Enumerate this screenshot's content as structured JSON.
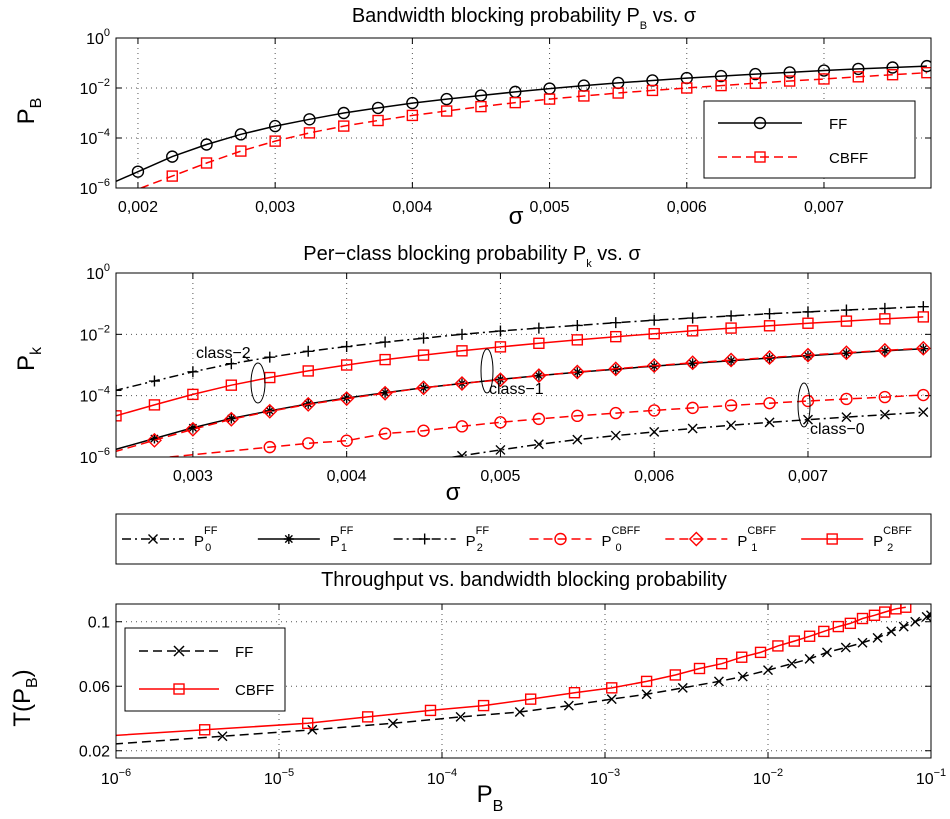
{
  "colors": {
    "black": "#000000",
    "red": "#ff0000"
  },
  "chart_data": [
    {
      "type": "line",
      "title": "Bandwidth blocking probability P_B vs. σ",
      "xlabel": "σ",
      "ylabel": "P_B",
      "xscale": "linear",
      "yscale": "log",
      "xlim": [
        0.00184,
        0.00778
      ],
      "ylim": [
        1e-06,
        1
      ],
      "xticks": [
        0.002,
        0.003,
        0.004,
        0.005,
        0.006,
        0.007
      ],
      "xtick_labels": [
        "0,002",
        "0,003",
        "0,004",
        "0,005",
        "0,006",
        "0,007"
      ],
      "yticks": [
        1e-06,
        0.0001,
        0.01,
        1
      ],
      "ytick_labels": [
        "10^-6",
        "10^-4",
        "10^-2",
        "10^0"
      ],
      "grid": true,
      "legend": {
        "placement": "right",
        "entries": [
          "FF",
          "CBFF"
        ]
      },
      "series": [
        {
          "name": "FF",
          "color": "#000000",
          "dash": "solid",
          "marker": "circle",
          "x": [
            0.002,
            0.00225,
            0.0025,
            0.00275,
            0.003,
            0.00325,
            0.0035,
            0.00375,
            0.004,
            0.00425,
            0.0045,
            0.00475,
            0.005,
            0.00525,
            0.0055,
            0.00575,
            0.006,
            0.00625,
            0.0065,
            0.00675,
            0.007,
            0.00725,
            0.0075,
            0.00775
          ],
          "y": [
            4.5e-06,
            1.8e-05,
            5.5e-05,
            0.00014,
            0.0003,
            0.00056,
            0.001,
            0.0016,
            0.0025,
            0.0036,
            0.005,
            0.007,
            0.0095,
            0.0125,
            0.016,
            0.02,
            0.025,
            0.03,
            0.036,
            0.042,
            0.05,
            0.058,
            0.066,
            0.075
          ]
        },
        {
          "name": "CBFF",
          "color": "#ff0000",
          "dash": "dashed",
          "marker": "square",
          "x": [
            0.00225,
            0.0025,
            0.00275,
            0.003,
            0.00325,
            0.0035,
            0.00375,
            0.004,
            0.00425,
            0.0045,
            0.00475,
            0.005,
            0.00525,
            0.0055,
            0.00575,
            0.006,
            0.00625,
            0.0065,
            0.00675,
            0.007,
            0.00725,
            0.0075,
            0.00775
          ],
          "y": [
            3e-06,
            1e-05,
            3e-05,
            7.5e-05,
            0.00016,
            0.0003,
            0.0005,
            0.0008,
            0.0012,
            0.0018,
            0.0026,
            0.0036,
            0.0048,
            0.0063,
            0.008,
            0.01,
            0.0125,
            0.0155,
            0.019,
            0.023,
            0.028,
            0.034,
            0.041
          ]
        }
      ]
    },
    {
      "type": "line",
      "title": "Per−class blocking probability P_k vs. σ",
      "xlabel": "σ",
      "ylabel": "P_k",
      "xscale": "linear",
      "yscale": "log",
      "xlim": [
        0.0025,
        0.0078
      ],
      "ylim": [
        1e-06,
        1
      ],
      "xticks": [
        0.003,
        0.004,
        0.005,
        0.006,
        0.007
      ],
      "xtick_labels": [
        "0,003",
        "0,004",
        "0,005",
        "0,006",
        "0,007"
      ],
      "yticks": [
        1e-06,
        0.0001,
        0.01,
        1
      ],
      "ytick_labels": [
        "10^-6",
        "10^-4",
        "10^-2",
        "10^0"
      ],
      "grid": true,
      "annotations": [
        "class−2",
        "class−1",
        "class−0"
      ],
      "legend": {
        "placement": "below",
        "entries": [
          "P_0^FF",
          "P_1^FF",
          "P_2^FF",
          "P_0^CBFF",
          "P_1^CBFF",
          "P_2^CBFF"
        ]
      },
      "series": [
        {
          "name": "P_0^FF",
          "color": "#000000",
          "dash": "dashdot",
          "marker": "x",
          "x": [
            0.0045,
            0.00475,
            0.005,
            0.00525,
            0.0055,
            0.00575,
            0.006,
            0.00625,
            0.0065,
            0.00675,
            0.007,
            0.00725,
            0.0075,
            0.00775
          ],
          "y": [
            7e-07,
            1.1e-06,
            1.7e-06,
            2.6e-06,
            3.7e-06,
            5e-06,
            6.6e-06,
            8.5e-06,
            1.08e-05,
            1.35e-05,
            1.65e-05,
            2e-05,
            2.4e-05,
            2.9e-05
          ]
        },
        {
          "name": "P_1^FF",
          "color": "#000000",
          "dash": "solid",
          "marker": "asterisk",
          "x": [
            0.00275,
            0.003,
            0.00325,
            0.0035,
            0.00375,
            0.004,
            0.00425,
            0.0045,
            0.00475,
            0.005,
            0.00525,
            0.0055,
            0.00575,
            0.006,
            0.00625,
            0.0065,
            0.00675,
            0.007,
            0.00725,
            0.0075,
            0.00775
          ],
          "y": [
            4e-06,
            9e-06,
            1.8e-05,
            3.2e-05,
            5.4e-05,
            8.4e-05,
            0.000125,
            0.00018,
            0.00025,
            0.00034,
            0.00045,
            0.00058,
            0.00073,
            0.00092,
            0.00113,
            0.00138,
            0.00168,
            0.002,
            0.0024,
            0.0029,
            0.0034
          ]
        },
        {
          "name": "P_2^FF",
          "color": "#000000",
          "dash": "dashdot",
          "marker": "plus",
          "x": [
            0.0025,
            0.00275,
            0.003,
            0.00325,
            0.0035,
            0.00375,
            0.004,
            0.00425,
            0.0045,
            0.00475,
            0.005,
            0.00525,
            0.0055,
            0.00575,
            0.006,
            0.00625,
            0.0065,
            0.00675,
            0.007,
            0.00725,
            0.0075,
            0.00775
          ],
          "y": [
            0.00015,
            0.0003,
            0.0006,
            0.0011,
            0.0018,
            0.0028,
            0.004,
            0.0056,
            0.0075,
            0.01,
            0.0128,
            0.016,
            0.0195,
            0.024,
            0.029,
            0.034,
            0.04,
            0.047,
            0.054,
            0.062,
            0.07,
            0.08
          ]
        },
        {
          "name": "P_0^CBFF",
          "color": "#ff0000",
          "dash": "dashed",
          "marker": "circle",
          "x": [
            0.0035,
            0.00375,
            0.004,
            0.00425,
            0.0045,
            0.00475,
            0.005,
            0.00525,
            0.0055,
            0.00575,
            0.006,
            0.00625,
            0.0065,
            0.00675,
            0.007,
            0.00725,
            0.0075,
            0.00775
          ],
          "y": [
            2.1e-06,
            2.8e-06,
            3.4e-06,
            5.8e-06,
            7.2e-06,
            1e-05,
            1.35e-05,
            1.75e-05,
            2.2e-05,
            2.7e-05,
            3.3e-05,
            4e-05,
            4.8e-05,
            5.7e-05,
            6.7e-05,
            7.8e-05,
            9e-05,
            0.000105
          ]
        },
        {
          "name": "P_1^CBFF",
          "color": "#ff0000",
          "dash": "dashed",
          "marker": "diamond",
          "x": [
            0.00275,
            0.003,
            0.00325,
            0.0035,
            0.00375,
            0.004,
            0.00425,
            0.0045,
            0.00475,
            0.005,
            0.00525,
            0.0055,
            0.00575,
            0.006,
            0.00625,
            0.0065,
            0.00675,
            0.007,
            0.00725,
            0.0075,
            0.00775
          ],
          "y": [
            3.5e-06,
            8e-06,
            1.7e-05,
            3.1e-05,
            5.2e-05,
            8e-05,
            0.00012,
            0.00018,
            0.00025,
            0.00033,
            0.00045,
            0.00059,
            0.00075,
            0.00095,
            0.00118,
            0.00145,
            0.00175,
            0.0021,
            0.0025,
            0.003,
            0.0035
          ]
        },
        {
          "name": "P_2^CBFF",
          "color": "#ff0000",
          "dash": "solid",
          "marker": "square",
          "x": [
            0.0025,
            0.00275,
            0.003,
            0.00325,
            0.0035,
            0.00375,
            0.004,
            0.00425,
            0.0045,
            0.00475,
            0.005,
            0.00525,
            0.0055,
            0.00575,
            0.006,
            0.00625,
            0.0065,
            0.00675,
            0.007,
            0.00725,
            0.0075,
            0.00775
          ],
          "y": [
            2.2e-05,
            5e-05,
            0.00011,
            0.00022,
            0.00039,
            0.00064,
            0.001,
            0.0015,
            0.0021,
            0.0029,
            0.0039,
            0.0051,
            0.0066,
            0.0084,
            0.0105,
            0.013,
            0.016,
            0.019,
            0.023,
            0.027,
            0.032,
            0.037
          ]
        }
      ]
    },
    {
      "type": "line",
      "title": "Throughput vs. bandwidth blocking probability",
      "xlabel": "P_B",
      "ylabel": "T(P_B)",
      "xscale": "log",
      "yscale": "linear",
      "xlim": [
        1e-06,
        0.1
      ],
      "ylim": [
        0.0155,
        0.111
      ],
      "xticks": [
        1e-06,
        1e-05,
        0.0001,
        0.001,
        0.01,
        0.1
      ],
      "xtick_labels": [
        "10^-6",
        "10^-5",
        "10^-4",
        "10^-3",
        "10^-2",
        "10^-1"
      ],
      "yticks": [
        0.02,
        0.06,
        0.1
      ],
      "ytick_labels": [
        "0.02",
        "0.06",
        "0.1"
      ],
      "grid": true,
      "legend": {
        "placement": "top-left",
        "entries": [
          "FF",
          "CBFF"
        ]
      },
      "series": [
        {
          "name": "FF",
          "color": "#000000",
          "dash": "dashed",
          "marker": "x",
          "x": [
            4.5e-06,
            1.6e-05,
            5e-05,
            0.00013,
            0.0003,
            0.0006,
            0.0011,
            0.0018,
            0.003,
            0.005,
            0.007,
            0.01,
            0.014,
            0.018,
            0.023,
            0.03,
            0.038,
            0.047,
            0.057,
            0.068,
            0.08,
            0.094,
            0.1
          ],
          "y": [
            0.029,
            0.033,
            0.037,
            0.041,
            0.044,
            0.048,
            0.052,
            0.055,
            0.059,
            0.063,
            0.066,
            0.07,
            0.074,
            0.077,
            0.081,
            0.084,
            0.087,
            0.09,
            0.094,
            0.097,
            0.1,
            0.103,
            0.104
          ]
        },
        {
          "name": "CBFF",
          "color": "#ff0000",
          "dash": "solid",
          "marker": "square",
          "x": [
            3.5e-06,
            1.5e-05,
            3.5e-05,
            8.5e-05,
            0.00018,
            0.00035,
            0.00065,
            0.0011,
            0.0018,
            0.0027,
            0.0038,
            0.0052,
            0.0069,
            0.009,
            0.0115,
            0.0145,
            0.018,
            0.022,
            0.027,
            0.032,
            0.038,
            0.045,
            0.052,
            0.061,
            0.07
          ],
          "y": [
            0.033,
            0.037,
            0.041,
            0.045,
            0.048,
            0.052,
            0.056,
            0.059,
            0.063,
            0.067,
            0.071,
            0.074,
            0.078,
            0.081,
            0.085,
            0.088,
            0.091,
            0.094,
            0.097,
            0.099,
            0.102,
            0.104,
            0.106,
            0.108,
            0.109
          ]
        }
      ]
    }
  ]
}
